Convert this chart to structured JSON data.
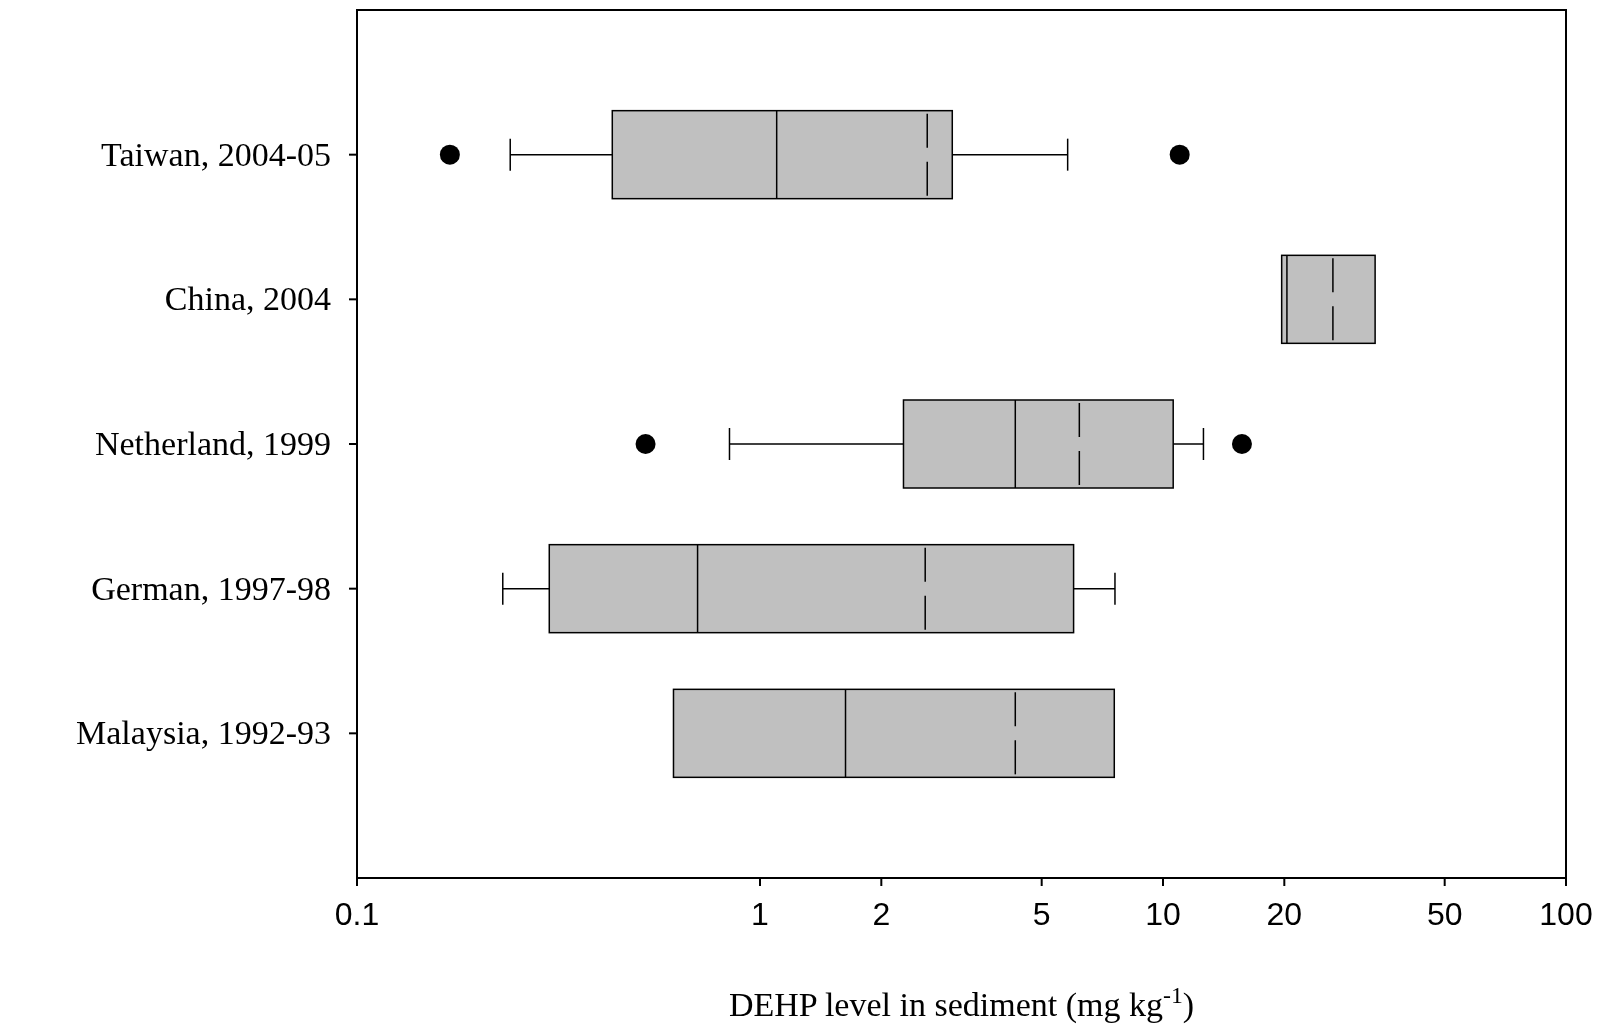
{
  "chart_data": {
    "type": "box",
    "orientation": "horizontal",
    "xlabel": "DEHP level in sediment (mg kg$^{-1}$)",
    "categories": [
      "Taiwan, 2004-05",
      "China, 2004",
      "Netherland, 1999",
      "German, 1997-98",
      "Malaysia, 1992-93"
    ],
    "boxes": [
      {
        "low": 0.24,
        "q1": 0.43,
        "median": 1.1,
        "q3": 3.0,
        "high": 5.8,
        "mean": 2.6,
        "outliers": [
          0.17,
          11
        ]
      },
      {
        "low": 19.7,
        "q1": 19.7,
        "median": 20.3,
        "q3": 33.6,
        "high": 33.6,
        "mean": 26.4
      },
      {
        "low": 0.84,
        "q1": 2.27,
        "median": 4.3,
        "q3": 10.6,
        "high": 12.6,
        "mean": 6.2,
        "outliers": [
          0.52,
          15.7
        ]
      },
      {
        "low": 0.23,
        "q1": 0.3,
        "median": 0.7,
        "q3": 6.0,
        "high": 7.6,
        "mean": 2.57
      },
      {
        "low": 0.61,
        "q1": 0.61,
        "median": 1.63,
        "q3": 7.57,
        "high": 7.57,
        "mean": 4.3
      }
    ],
    "color": "#c0c0c0",
    "log": "x",
    "xlim": [
      0.1,
      100
    ],
    "xticks": [
      0.1,
      1,
      2,
      5,
      10,
      20,
      50,
      100
    ],
    "grid": false
  }
}
